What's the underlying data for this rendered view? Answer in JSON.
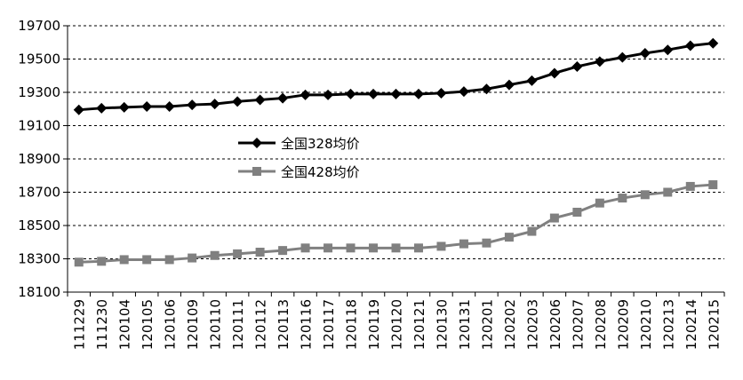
{
  "chart_data": {
    "type": "line",
    "categories": [
      "111229",
      "111230",
      "120104",
      "120105",
      "120106",
      "120109",
      "120110",
      "120111",
      "120112",
      "120113",
      "120116",
      "120117",
      "120118",
      "120119",
      "120120",
      "120121",
      "120130",
      "120131",
      "120201",
      "120202",
      "120203",
      "120206",
      "120207",
      "120208",
      "120209",
      "120210",
      "120213",
      "120214",
      "120215"
    ],
    "series": [
      {
        "name": "全国328均价",
        "color": "#000000",
        "marker": "diamond",
        "values": [
          19195,
          19205,
          19210,
          19215,
          19215,
          19225,
          19230,
          19245,
          19255,
          19265,
          19285,
          19285,
          19290,
          19290,
          19290,
          19290,
          19295,
          19305,
          19320,
          19345,
          19370,
          19415,
          19455,
          19485,
          19510,
          19535,
          19555,
          19580,
          19595
        ]
      },
      {
        "name": "全国428均价",
        "color": "#808080",
        "marker": "square",
        "values": [
          18280,
          18285,
          18295,
          18295,
          18295,
          18305,
          18320,
          18330,
          18340,
          18350,
          18365,
          18365,
          18365,
          18365,
          18365,
          18365,
          18375,
          18390,
          18395,
          18430,
          18465,
          18545,
          18580,
          18635,
          18665,
          18685,
          18700,
          18735,
          18745
        ]
      }
    ],
    "ylim": [
      18100,
      19700
    ],
    "yticks": [
      18100,
      18300,
      18500,
      18700,
      18900,
      19100,
      19300,
      19500,
      19700
    ],
    "grid": true
  }
}
